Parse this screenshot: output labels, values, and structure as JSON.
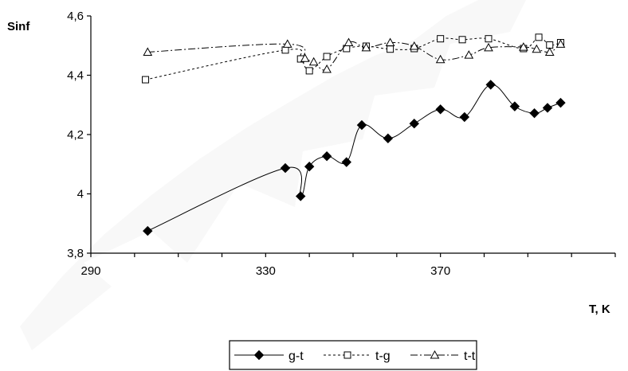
{
  "chart_data": {
    "type": "line",
    "title": "",
    "xlabel": "T, K",
    "ylabel": "Sinf",
    "xlim": [
      290,
      410
    ],
    "ylim": [
      3.8,
      4.6
    ],
    "xticks": [
      290,
      330,
      370
    ],
    "xtick_labels": [
      "290",
      "330",
      "370"
    ],
    "yticks": [
      3.8,
      4.0,
      4.2,
      4.4,
      4.6
    ],
    "ytick_labels": [
      "3,8",
      "4",
      "4,2",
      "4,4",
      "4,6"
    ],
    "grid": false,
    "legend_position": "bottom-center",
    "series": [
      {
        "name": "g-t",
        "marker": "filled-diamond",
        "line_style": "solid-smooth",
        "color": "#000000",
        "x": [
          303,
          334.5,
          338,
          340,
          344,
          348.5,
          352,
          358,
          364,
          370,
          375.5,
          381.5,
          387,
          391.5,
          394.5,
          397.5
        ],
        "y": [
          3.875,
          4.087,
          3.992,
          4.092,
          4.127,
          4.107,
          4.232,
          4.187,
          4.237,
          4.285,
          4.259,
          4.368,
          4.295,
          4.272,
          4.29,
          4.307
        ]
      },
      {
        "name": "t-g",
        "marker": "open-square",
        "line_style": "dotted",
        "color": "#000000",
        "x": [
          302.5,
          334.5,
          338,
          340,
          344,
          348.5,
          353,
          358.5,
          364,
          370,
          375,
          381,
          389,
          392.5,
          395,
          397.5
        ],
        "y": [
          4.385,
          4.485,
          4.455,
          4.415,
          4.463,
          4.49,
          4.498,
          4.488,
          4.49,
          4.523,
          4.52,
          4.523,
          4.49,
          4.528,
          4.502,
          4.51
        ]
      },
      {
        "name": "t-t",
        "marker": "open-triangle",
        "line_style": "dash-dot",
        "color": "#000000",
        "x": [
          303,
          335,
          339,
          341,
          344,
          349,
          353,
          358.5,
          364,
          370,
          376.5,
          381,
          389,
          392,
          395,
          397.5
        ],
        "y": [
          4.478,
          4.505,
          4.457,
          4.445,
          4.42,
          4.51,
          4.493,
          4.51,
          4.498,
          4.453,
          4.468,
          4.493,
          4.495,
          4.488,
          4.478,
          4.505
        ]
      }
    ]
  }
}
